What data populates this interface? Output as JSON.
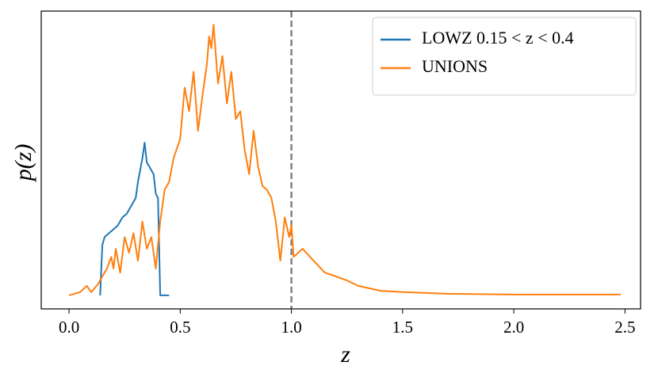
{
  "chart_data": {
    "type": "line",
    "x_label": "z",
    "y_label": "p(z)",
    "xlim": [
      -0.125,
      2.57
    ],
    "ylim": [
      -0.05,
      1.05
    ],
    "xticks": [
      {
        "value": 0,
        "label": "0.0"
      },
      0.5,
      {
        "value": 1,
        "label": "1.0"
      },
      1.5,
      {
        "value": 2,
        "label": "2.0"
      },
      2.5
    ],
    "vline": 1,
    "vline_color": "#808080",
    "legend": "upper right",
    "series": [
      {
        "name": "LOWZ 0.15 < z < 0.4",
        "color": "#1f77b4",
        "x": [
          0.14,
          0.15,
          0.16,
          0.18,
          0.2,
          0.22,
          0.24,
          0.26,
          0.28,
          0.3,
          0.31,
          0.32,
          0.33,
          0.34,
          0.35,
          0.36,
          0.37,
          0.38,
          0.39,
          0.4,
          0.41,
          0.45
        ],
        "values": [
          0,
          0.186,
          0.215,
          0.23,
          0.244,
          0.259,
          0.288,
          0.302,
          0.331,
          0.36,
          0.419,
          0.462,
          0.506,
          0.564,
          0.491,
          0.477,
          0.462,
          0.448,
          0.375,
          0.36,
          0,
          0
        ]
      },
      {
        "name": "UNIONS",
        "color": "#ff7f0e",
        "x": [
          0.0,
          0.05,
          0.08,
          0.1,
          0.13,
          0.15,
          0.17,
          0.19,
          0.2,
          0.21,
          0.23,
          0.25,
          0.27,
          0.29,
          0.31,
          0.33,
          0.35,
          0.37,
          0.39,
          0.41,
          0.43,
          0.45,
          0.47,
          0.5,
          0.52,
          0.54,
          0.56,
          0.58,
          0.6,
          0.62,
          0.63,
          0.64,
          0.65,
          0.67,
          0.69,
          0.71,
          0.73,
          0.75,
          0.77,
          0.79,
          0.81,
          0.83,
          0.85,
          0.87,
          0.89,
          0.91,
          0.93,
          0.95,
          0.97,
          0.99,
          1.0,
          1.01,
          1.05,
          1.1,
          1.15,
          1.2,
          1.25,
          1.3,
          1.35,
          1.4,
          1.5,
          1.7,
          2.0,
          2.48
        ],
        "values": [
          0,
          0.012,
          0.035,
          0.012,
          0.041,
          0.07,
          0.099,
          0.142,
          0.099,
          0.172,
          0.084,
          0.215,
          0.157,
          0.23,
          0.128,
          0.273,
          0.172,
          0.215,
          0.099,
          0.273,
          0.39,
          0.419,
          0.506,
          0.578,
          0.767,
          0.68,
          0.826,
          0.608,
          0.738,
          0.855,
          0.956,
          0.913,
          1.0,
          0.782,
          0.884,
          0.709,
          0.826,
          0.651,
          0.68,
          0.535,
          0.448,
          0.608,
          0.477,
          0.404,
          0.39,
          0.36,
          0.273,
          0.128,
          0.288,
          0.215,
          0.259,
          0.142,
          0.172,
          0.128,
          0.084,
          0.07,
          0.055,
          0.035,
          0.026,
          0.017,
          0.012,
          0.006,
          0.003,
          0.003
        ]
      }
    ]
  }
}
